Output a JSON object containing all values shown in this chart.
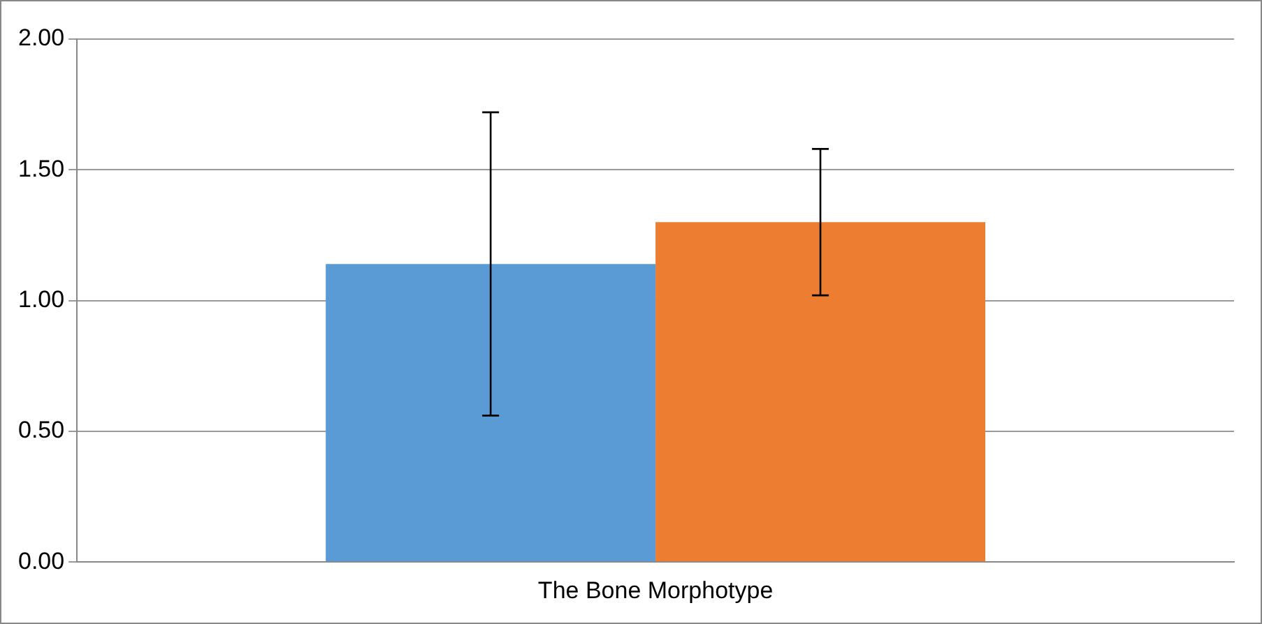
{
  "chart_data": {
    "type": "bar",
    "categories": [
      "The Bone Morphotype"
    ],
    "series": [
      {
        "color": "#5b9bd5",
        "values": [
          1.14
        ],
        "errors": [
          [
            0.56,
            1.72
          ]
        ]
      },
      {
        "color": "#ed7d31",
        "values": [
          1.3
        ],
        "errors": [
          [
            1.02,
            1.58
          ]
        ]
      }
    ],
    "ylim": [
      0,
      2
    ],
    "yticks": [
      {
        "value": 0,
        "label": "0.00"
      },
      {
        "value": 0.5,
        "label": "0.50"
      },
      {
        "value": 1,
        "label": "1.00"
      },
      {
        "value": 1.5,
        "label": "1.50"
      },
      {
        "value": 2,
        "label": "2.00"
      }
    ],
    "grid": "y",
    "legend": false
  }
}
